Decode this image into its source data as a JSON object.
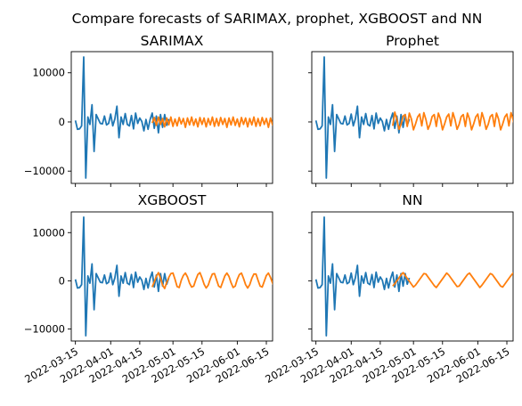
{
  "figure": {
    "suptitle": "Compare forecasts of SARIMAX, prophet, XGBOOST and NN"
  },
  "chart_data": {
    "type": "line",
    "sharex": true,
    "sharey": true,
    "x_tick_labels": [
      "2022-03-15",
      "2022-04-01",
      "2022-04-15",
      "2022-05-01",
      "2022-05-15",
      "2022-06-01",
      "2022-06-15"
    ],
    "y_ticks": [
      -10000,
      0,
      10000
    ],
    "y_tick_labels": [
      "−10000",
      "0",
      "10000"
    ],
    "ylim": [
      -12500,
      14300
    ],
    "xlim_days": [
      -2,
      95
    ],
    "series_colors": {
      "actual": "#1f77b4",
      "forecast": "#ff7f0e"
    },
    "actual_series": {
      "start_date": "2022-03-15",
      "values": [
        300,
        -1500,
        -1400,
        -800,
        13200,
        -11400,
        1000,
        -500,
        3500,
        -6000,
        1500,
        600,
        -300,
        -400,
        1200,
        -600,
        -300,
        1600,
        -800,
        600,
        3200,
        -3200,
        1000,
        -500,
        1700,
        -500,
        -800,
        1300,
        -1400,
        1800,
        -300,
        800,
        100,
        -1800,
        500,
        -1500,
        500,
        1800,
        -1300,
        1200,
        -2200,
        1500,
        -1100,
        1500,
        -700,
        600
      ]
    },
    "panels": [
      {
        "title": "SARIMAX",
        "forecast_start_date": "2022-04-21",
        "forecast_values": [
          -200,
          900,
          -700,
          1000,
          -500,
          700,
          -1000,
          800,
          -600,
          1000,
          -900,
          600,
          -800,
          900,
          -400,
          700,
          -1100,
          800,
          -600,
          1000,
          -700,
          600,
          -1000,
          900,
          -500,
          800,
          -1000,
          700,
          -600,
          1000,
          -900,
          700,
          -800,
          900,
          -500,
          700,
          -1100,
          800,
          -600,
          1000,
          -700,
          600,
          -1000,
          900,
          -500,
          800,
          -1000,
          700,
          -600,
          1000,
          -900,
          700,
          -800,
          900,
          -500,
          700,
          -1100,
          800,
          -600,
          1000,
          -700
        ]
      },
      {
        "title": "Prophet",
        "forecast_start_date": "2022-04-21",
        "forecast_values": [
          -800,
          2000,
          500,
          -1500,
          -500,
          1200,
          1500,
          -900,
          1800,
          600,
          -1600,
          -400,
          1000,
          1600,
          -800,
          1900,
          500,
          -1500,
          -500,
          1100,
          1500,
          -900,
          1800,
          600,
          -1600,
          -400,
          1000,
          1600,
          -800,
          1900,
          500,
          -1500,
          -500,
          1100,
          1500,
          -900,
          1800,
          600,
          -1600,
          -400,
          1000,
          1600,
          -800,
          1900,
          500,
          -1500,
          -500,
          1100,
          1500,
          -900,
          1800,
          600,
          -1600,
          -400,
          1000,
          1600,
          -800,
          1900,
          500,
          -1500,
          -500
        ]
      },
      {
        "title": "XGBOOST",
        "forecast_start_date": "2022-04-21",
        "forecast_values": [
          -1300,
          -200,
          900,
          1700,
          500,
          -900,
          -1600,
          -300,
          700,
          1500,
          1600,
          300,
          -1200,
          -1400,
          100,
          1100,
          1600,
          800,
          -500,
          -1300,
          -1100,
          200,
          1300,
          1700,
          600,
          -700,
          -1500,
          -900,
          400,
          1400,
          1500,
          200,
          -1100,
          -1400,
          -200,
          1000,
          1600,
          900,
          -400,
          -1400,
          -1100,
          300,
          1300,
          1600,
          500,
          -800,
          -1500,
          -800,
          500,
          1400,
          1400,
          100,
          -1100,
          -1300,
          -100,
          1100,
          1600,
          700,
          -500,
          -1300,
          100
        ]
      },
      {
        "title": "NN",
        "forecast_start_date": "2022-04-21",
        "forecast_values": [
          -1100,
          -600,
          0,
          600,
          1200,
          1700,
          1100,
          500,
          -100,
          -700,
          -1300,
          -900,
          -300,
          300,
          900,
          1500,
          1400,
          800,
          200,
          -400,
          -1000,
          -1400,
          -800,
          -200,
          400,
          1000,
          1600,
          1200,
          600,
          0,
          -600,
          -1200,
          -1100,
          -500,
          100,
          700,
          1300,
          1600,
          1000,
          400,
          -200,
          -800,
          -1400,
          -900,
          -300,
          300,
          900,
          1500,
          1300,
          700,
          100,
          -500,
          -1100,
          -1300,
          -700,
          -100,
          500,
          1100,
          1600,
          1100,
          300
        ]
      }
    ]
  }
}
